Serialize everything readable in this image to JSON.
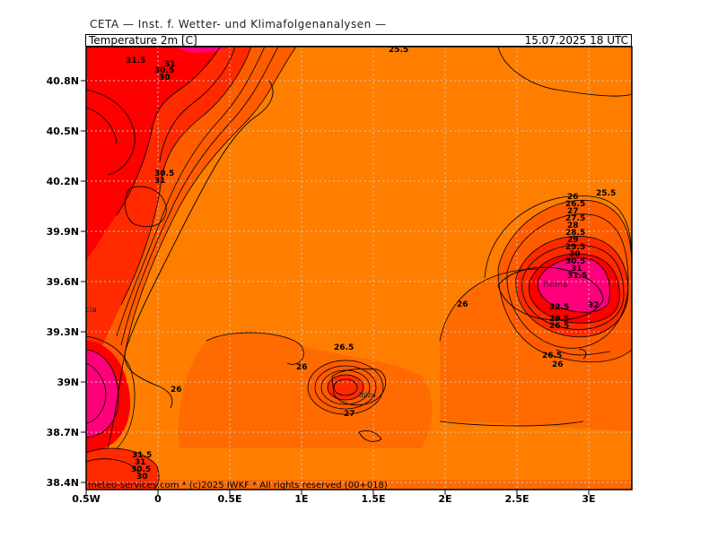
{
  "header": {
    "source": "CETA — Inst. f. Wetter- und Klimafolgenanalysen —",
    "variable": "Temperature 2m [C]",
    "valid": "15.07.2025 18 UTC"
  },
  "axes": {
    "lat": [
      "40.8N",
      "40.5N",
      "40.2N",
      "39.9N",
      "39.6N",
      "39.3N",
      "39N",
      "38.7N",
      "38.4N"
    ],
    "lon": [
      "0.5W",
      "0",
      "0.5E",
      "1E",
      "1.5E",
      "2E",
      "2.5E",
      "3E"
    ]
  },
  "places": {
    "palma": "Palma",
    "valencia": "Valencia",
    "ibiza": "Ibiza"
  },
  "contour_labels": [
    "31.5",
    "31",
    "30.5",
    "30",
    "30.5",
    "31",
    "26",
    "26.5",
    "27",
    "27.5",
    "28",
    "28.5",
    "29",
    "29.5",
    "30",
    "30.5",
    "31",
    "31.5",
    "32.5",
    "32",
    "26",
    "26.5",
    "26",
    "26",
    "26",
    "26.5",
    "27",
    "25.5",
    "31.5",
    "31",
    "30.5",
    "30",
    "29.5",
    "26.5",
    "25.5"
  ],
  "footer": "meteo-services.com * (c)2025 IWKF * All rights reserved (00+018)",
  "colors": {
    "t26_27": "#ff7e00",
    "t25_26": "#ff6b00",
    "t27_29": "#ff5c00",
    "t29_31": "#ff2a00",
    "t31_32": "#ff0000",
    "t32plus": "#ff007a",
    "contour": "#000000",
    "grid": "#c8c8c8"
  }
}
